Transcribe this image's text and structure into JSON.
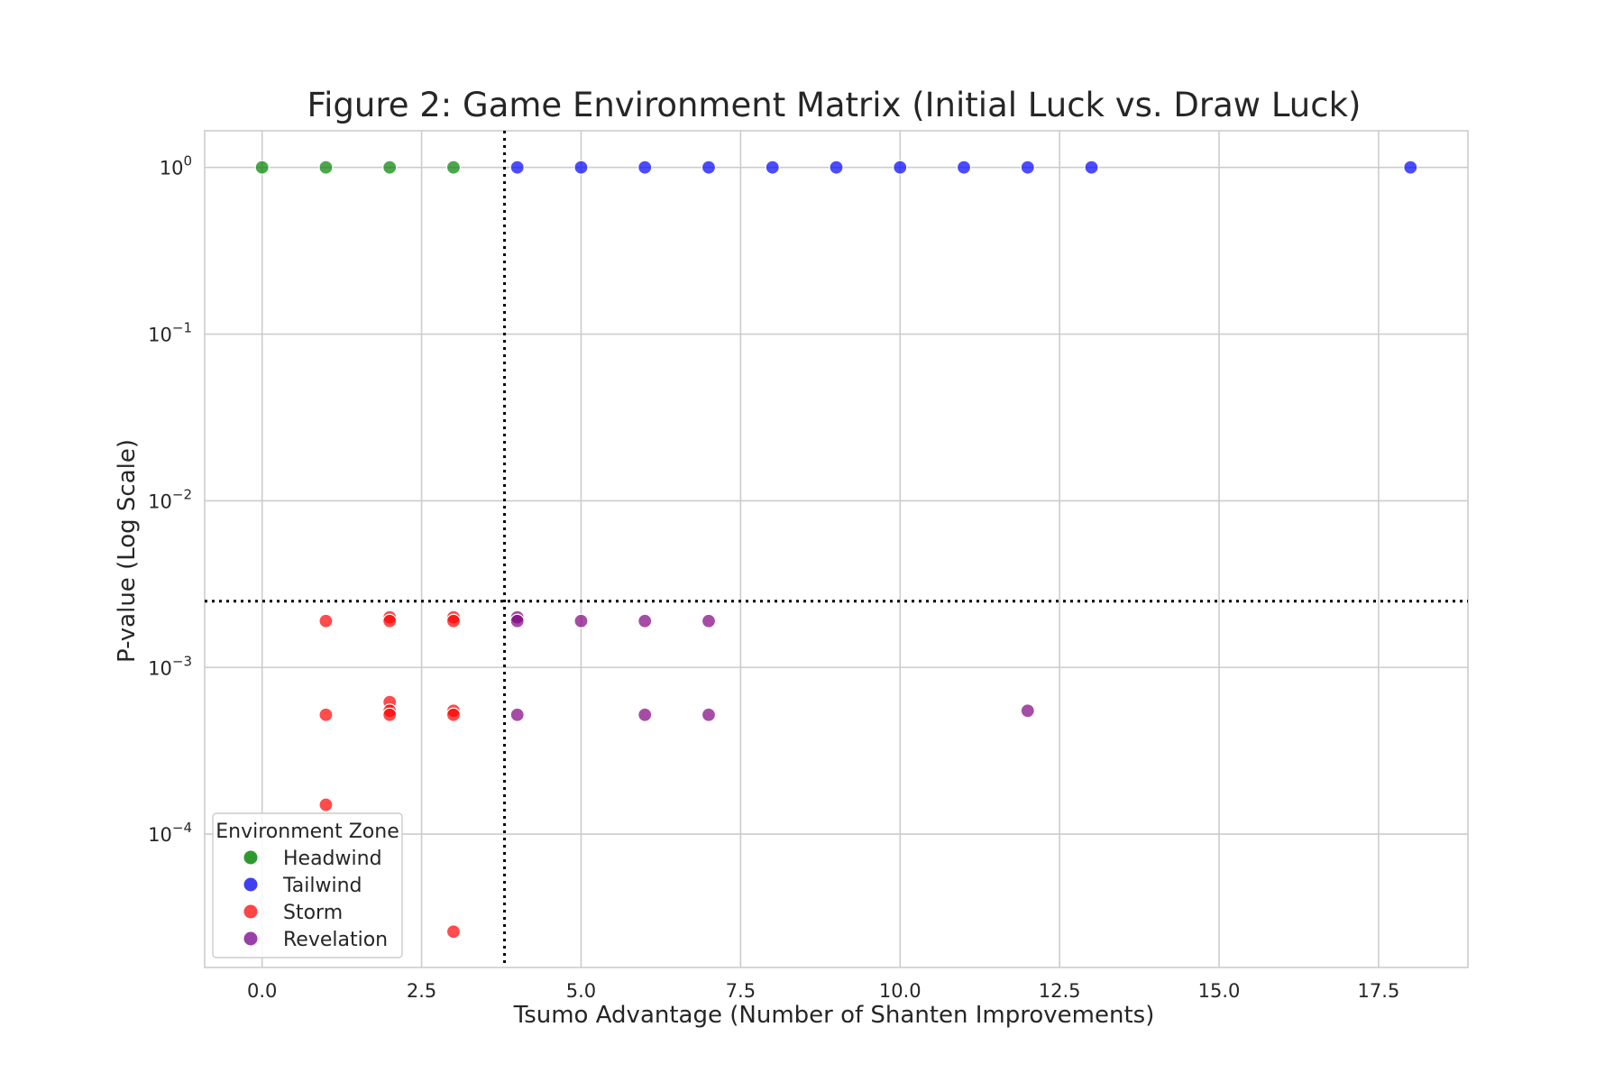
{
  "chart_data": {
    "type": "scatter",
    "title": "Figure 2: Game Environment Matrix (Initial Luck vs. Draw Luck)",
    "xlabel": "Tsumo Advantage (Number of Shanten Improvements)",
    "ylabel": "P-value (Log Scale)",
    "xlim": [
      -0.9,
      18.9
    ],
    "ylim_log10": [
      -4.8,
      0.22
    ],
    "y_scale": "log",
    "x_ticks": [
      0.0,
      2.5,
      5.0,
      7.5,
      10.0,
      12.5,
      15.0,
      17.5
    ],
    "x_tick_labels": [
      "0.0",
      "2.5",
      "5.0",
      "7.5",
      "10.0",
      "12.5",
      "15.0",
      "17.5"
    ],
    "y_ticks": [
      1,
      0.1,
      0.01,
      0.001,
      0.0001
    ],
    "y_tick_labels": [
      {
        "base": "10",
        "exp": "0"
      },
      {
        "base": "10",
        "exp": "−1"
      },
      {
        "base": "10",
        "exp": "−2"
      },
      {
        "base": "10",
        "exp": "−3"
      },
      {
        "base": "10",
        "exp": "−4"
      }
    ],
    "grid": true,
    "thresholds": {
      "x": 3.8,
      "y": 0.0025,
      "style": "dotted",
      "color": "#000000"
    },
    "legend": {
      "title": "Environment Zone",
      "position": "lower-left",
      "entries": [
        {
          "label": "Headwind",
          "color": "#2e9a2e"
        },
        {
          "label": "Tailwind",
          "color": "#4040f0"
        },
        {
          "label": "Storm",
          "color": "#ff4444"
        },
        {
          "label": "Revelation",
          "color": "#9b3fa8"
        }
      ]
    },
    "series": [
      {
        "name": "Headwind",
        "color": "#008000",
        "points": [
          [
            0,
            1
          ],
          [
            1,
            1
          ],
          [
            2,
            1
          ],
          [
            3,
            1
          ]
        ]
      },
      {
        "name": "Tailwind",
        "color": "#0000ff",
        "points": [
          [
            4,
            1
          ],
          [
            5,
            1
          ],
          [
            6,
            1
          ],
          [
            7,
            1
          ],
          [
            8,
            1
          ],
          [
            9,
            1
          ],
          [
            10,
            1
          ],
          [
            11,
            1
          ],
          [
            12,
            1
          ],
          [
            13,
            1
          ],
          [
            18,
            1
          ]
        ]
      },
      {
        "name": "Storm",
        "color": "#ff0000",
        "points": [
          [
            1,
            0.0019
          ],
          [
            1,
            0.00052
          ],
          [
            1,
            0.00015
          ],
          [
            2,
            0.002
          ],
          [
            2,
            0.0019
          ],
          [
            2,
            0.00062
          ],
          [
            2,
            0.00055
          ],
          [
            2,
            0.00052
          ],
          [
            3,
            0.002
          ],
          [
            3,
            0.0019
          ],
          [
            3,
            0.00055
          ],
          [
            3,
            0.00052
          ],
          [
            3,
            2.6e-05
          ]
        ]
      },
      {
        "name": "Revelation",
        "color": "#800080",
        "points": [
          [
            4,
            0.002
          ],
          [
            4,
            0.0019
          ],
          [
            4,
            0.00052
          ],
          [
            5,
            0.0019
          ],
          [
            6,
            0.0019
          ],
          [
            6,
            0.00052
          ],
          [
            7,
            0.0019
          ],
          [
            7,
            0.00052
          ],
          [
            12,
            0.00055
          ]
        ]
      }
    ]
  }
}
